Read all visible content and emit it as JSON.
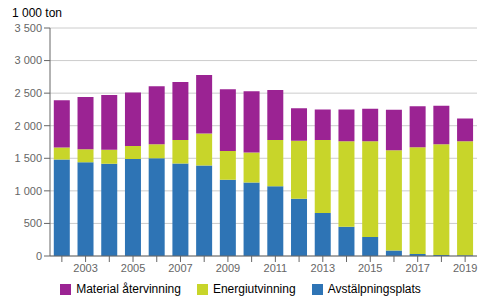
{
  "chart_data": {
    "type": "bar",
    "stacked": true,
    "categories": [
      null,
      "2003",
      null,
      "2005",
      null,
      "2007",
      null,
      "2009",
      null,
      "2011",
      null,
      "2013",
      null,
      "2015",
      null,
      "2017",
      null,
      "2019"
    ],
    "series": [
      {
        "name": "Avstälpningsplats",
        "color": "#2e74b5",
        "values": [
          1480,
          1440,
          1415,
          1490,
          1500,
          1420,
          1390,
          1170,
          1130,
          1070,
          880,
          660,
          450,
          290,
          85,
          30,
          15,
          10
        ]
      },
      {
        "name": "Energiutvinning",
        "color": "#c8d52a",
        "values": [
          185,
          200,
          215,
          200,
          215,
          360,
          490,
          440,
          460,
          710,
          890,
          1120,
          1310,
          1470,
          1540,
          1640,
          1700,
          1750
        ]
      },
      {
        "name": "Material återvinning",
        "color": "#9b2393",
        "values": [
          725,
          800,
          840,
          820,
          890,
          890,
          900,
          950,
          940,
          770,
          500,
          470,
          490,
          500,
          620,
          630,
          590,
          350
        ]
      }
    ],
    "ylabel": "1 000 ton",
    "ylim": [
      0,
      3500
    ],
    "yticks": [
      0,
      500,
      {
        "value": 1000,
        "label": "1 000"
      },
      {
        "value": 1500,
        "label": "1 500"
      },
      {
        "value": 2000,
        "label": "2 000"
      },
      {
        "value": 2500,
        "label": "2 500"
      },
      {
        "value": 3000,
        "label": "3 000"
      },
      {
        "value": 3500,
        "label": "3 500"
      }
    ],
    "grid": true,
    "legend": "bottom"
  }
}
